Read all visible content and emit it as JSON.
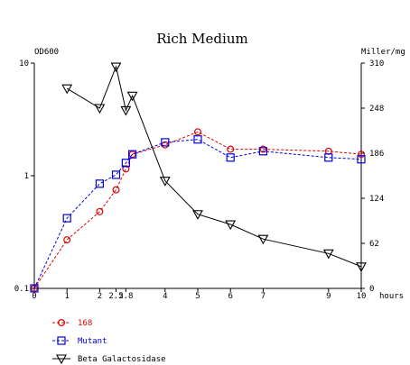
{
  "chart_data": {
    "type": "line",
    "title": "Rich Medium",
    "left_axis": {
      "label": "OD600",
      "scale": "log",
      "range": [
        0.1,
        10
      ],
      "ticks": [
        {
          "value": 0.1,
          "label": "0.1"
        },
        {
          "value": 1,
          "label": "1"
        },
        {
          "value": 10,
          "label": "10"
        }
      ]
    },
    "right_axis": {
      "label": "Miller/mg",
      "scale": "linear",
      "range": [
        0,
        310
      ],
      "ticks": [
        {
          "value": 0,
          "label": "0"
        },
        {
          "value": 62,
          "label": "62"
        },
        {
          "value": 124,
          "label": "124"
        },
        {
          "value": 186,
          "label": "186"
        },
        {
          "value": 248,
          "label": "248"
        },
        {
          "value": 310,
          "label": "310"
        }
      ]
    },
    "x_axis": {
      "label": "hours",
      "range": [
        0,
        10
      ],
      "ticks": [
        {
          "value": 0,
          "label": "0"
        },
        {
          "value": 1,
          "label": "1"
        },
        {
          "value": 2,
          "label": "2"
        },
        {
          "value": 2.5,
          "label": "2.5"
        },
        {
          "value": 2.8,
          "label": "2.8"
        },
        {
          "value": 4,
          "label": "4"
        },
        {
          "value": 5,
          "label": "5"
        },
        {
          "value": 6,
          "label": "6"
        },
        {
          "value": 7,
          "label": "7"
        },
        {
          "value": 9,
          "label": "9"
        },
        {
          "value": 10,
          "label": "10"
        }
      ]
    },
    "series": [
      {
        "name": "168",
        "axis": "left",
        "marker": "circle",
        "color": "#dd0000",
        "dash": true,
        "points": [
          [
            0,
            0.1
          ],
          [
            1,
            0.27
          ],
          [
            2,
            0.48
          ],
          [
            2.5,
            0.75
          ],
          [
            2.8,
            1.15
          ],
          [
            3,
            1.55
          ],
          [
            4,
            1.88
          ],
          [
            5,
            2.45
          ],
          [
            6,
            1.72
          ],
          [
            7,
            1.72
          ],
          [
            9,
            1.65
          ],
          [
            10,
            1.55
          ]
        ]
      },
      {
        "name": "Mutant",
        "axis": "left",
        "marker": "square",
        "color": "#0000dd",
        "dash": true,
        "points": [
          [
            0,
            0.1
          ],
          [
            1,
            0.42
          ],
          [
            2,
            0.85
          ],
          [
            2.5,
            1.02
          ],
          [
            2.8,
            1.3
          ],
          [
            3,
            1.55
          ],
          [
            4,
            1.98
          ],
          [
            5,
            2.1
          ],
          [
            6,
            1.45
          ],
          [
            7,
            1.65
          ],
          [
            9,
            1.45
          ],
          [
            10,
            1.4
          ]
        ]
      },
      {
        "name": "Beta Galactosidase",
        "axis": "right",
        "marker": "triangle-down",
        "color": "#000000",
        "dash": false,
        "points": [
          [
            1,
            275
          ],
          [
            2,
            248
          ],
          [
            2.5,
            305
          ],
          [
            2.8,
            245
          ],
          [
            3,
            265
          ],
          [
            4,
            148
          ],
          [
            5,
            102
          ],
          [
            6,
            88
          ],
          [
            7,
            68
          ],
          [
            9,
            48
          ],
          [
            10,
            30
          ]
        ]
      }
    ],
    "legend": {
      "placement": "bottom-left",
      "entries": [
        "168",
        "Mutant",
        "Beta Galactosidase"
      ]
    },
    "grid": false
  }
}
